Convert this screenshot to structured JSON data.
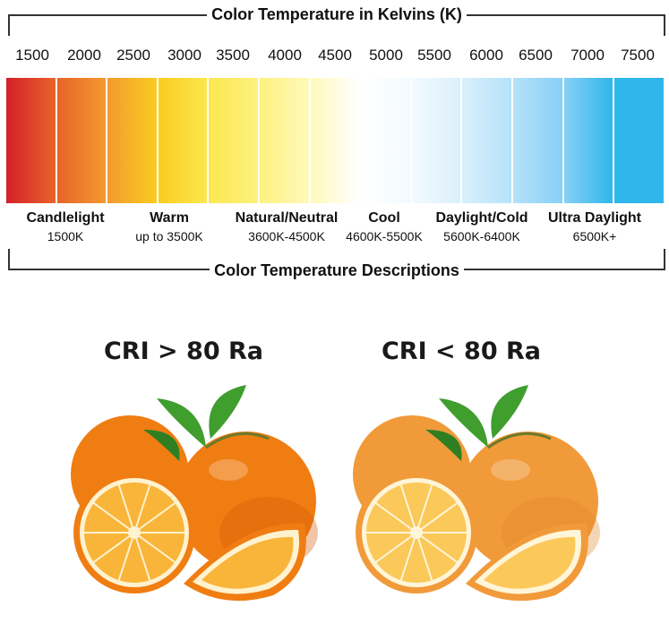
{
  "diagram": {
    "top_title": "Color Temperature in Kelvins (K)",
    "bottom_title": "Color Temperature Descriptions",
    "kelvin_ticks": [
      "1500",
      "2000",
      "2500",
      "3000",
      "3500",
      "4000",
      "4500",
      "5000",
      "5500",
      "6000",
      "6500",
      "7000",
      "7500"
    ],
    "band_colors": [
      "#d41f2a",
      "#e8642a",
      "#f39a2f",
      "#f9cc20",
      "#fbe74f",
      "#fdf17e",
      "#fff9bb",
      "#ffffff",
      "#f3fafe",
      "#d9f0fc",
      "#b6e2f9",
      "#86d0f6",
      "#2fb6ea"
    ],
    "descriptions": [
      {
        "name": "Candlelight",
        "range": "1500K"
      },
      {
        "name": "Warm",
        "range": "up to 3500K"
      },
      {
        "name": "Natural/Neutral",
        "range": "3600K-4500K"
      },
      {
        "name": "Cool",
        "range": "4600K-5500K"
      },
      {
        "name": "Daylight/Cold",
        "range": "5600K-6400K"
      },
      {
        "name": "Ultra Daylight",
        "range": "6500K+"
      }
    ]
  },
  "comparison": {
    "left_label": "CRI > 80 Ra",
    "right_label": "CRI < 80 Ra",
    "left_colors": {
      "peel": "#f07d12",
      "peel_dark": "#d45a08",
      "flesh": "#f8b53a",
      "pith": "#fff2cf"
    },
    "right_colors": {
      "peel": "#f19a3a",
      "peel_dark": "#e0862c",
      "flesh": "#fbc85a",
      "pith": "#fff5d8"
    },
    "leaf_color": "#3f9e2e"
  }
}
